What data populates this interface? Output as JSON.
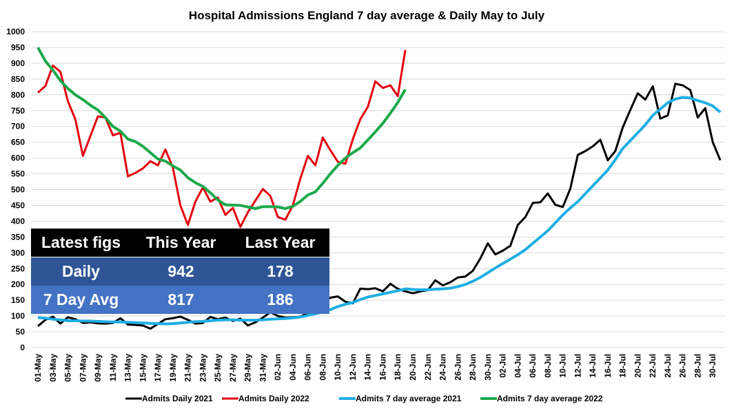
{
  "chart_data": {
    "type": "line",
    "title": "Hospital Admissions England 7 day average & Daily May to July",
    "ylim": [
      0,
      1000
    ],
    "yticks": [
      0,
      50,
      100,
      150,
      200,
      250,
      300,
      350,
      400,
      450,
      500,
      550,
      600,
      650,
      700,
      750,
      800,
      850,
      900,
      950,
      1000
    ],
    "grid": true,
    "legend": "bottom",
    "x_start": "01-May",
    "x_end": "31-Jul",
    "xticks": [
      "01-May",
      "03-May",
      "05-May",
      "07-May",
      "09-May",
      "11-May",
      "13-May",
      "15-May",
      "17-May",
      "19-May",
      "21-May",
      "23-May",
      "25-May",
      "27-May",
      "29-May",
      "31-May",
      "02-Jun",
      "04-Jun",
      "06-Jun",
      "08-Jun",
      "10-Jun",
      "12-Jun",
      "14-Jun",
      "16-Jun",
      "18-Jun",
      "20-Jun",
      "22-Jun",
      "24-Jun",
      "26-Jun",
      "28-Jun",
      "30-Jun",
      "02-Jul",
      "04-Jul",
      "06-Jul",
      "08-Jul",
      "10-Jul",
      "12-Jul",
      "14-Jul",
      "16-Jul",
      "18-Jul",
      "20-Jul",
      "22-Jul",
      "24-Jul",
      "26-Jul",
      "28-Jul",
      "30-Jul"
    ],
    "series": [
      {
        "name": "Admits Daily 2021",
        "color": "#000000",
        "values": [
          68,
          88,
          98,
          76,
          96,
          90,
          78,
          80,
          77,
          76,
          78,
          93,
          73,
          72,
          70,
          60,
          75,
          90,
          93,
          98,
          88,
          76,
          78,
          97,
          90,
          95,
          84,
          92,
          70,
          80,
          95,
          112,
          100,
          95,
          96,
          98,
          110,
          125,
          145,
          158,
          162,
          145,
          140,
          187,
          185,
          188,
          178,
          202,
          186,
          178,
          172,
          178,
          182,
          213,
          197,
          207,
          222,
          225,
          243,
          282,
          330,
          295,
          307,
          322,
          388,
          413,
          458,
          460,
          488,
          452,
          445,
          503,
          610,
          622,
          637,
          658,
          593,
          622,
          697,
          752,
          805,
          785,
          827,
          725,
          735,
          835,
          830,
          815,
          728,
          758,
          650,
          593
        ]
      },
      {
        "name": "Admits Daily 2022",
        "color": "#e3000f",
        "values": [
          807,
          828,
          893,
          873,
          780,
          722,
          607,
          670,
          732,
          728,
          672,
          680,
          542,
          553,
          567,
          590,
          577,
          627,
          570,
          450,
          388,
          462,
          507,
          462,
          475,
          420,
          442,
          382,
          428,
          465,
          502,
          480,
          413,
          405,
          450,
          535,
          607,
          577,
          665,
          625,
          588,
          582,
          660,
          723,
          762,
          843,
          822,
          830,
          796,
          942
        ]
      },
      {
        "name": "Admits 7 day average 2021",
        "color": "#1eaee4",
        "values": [
          95,
          93,
          90,
          88,
          85,
          85,
          84,
          84,
          83,
          82,
          81,
          81,
          80,
          79,
          78,
          77,
          76,
          75,
          76,
          78,
          80,
          82,
          83,
          85,
          87,
          88,
          88,
          87,
          87,
          87,
          88,
          90,
          91,
          92,
          94,
          97,
          102,
          107,
          112,
          120,
          130,
          137,
          143,
          152,
          160,
          165,
          170,
          175,
          180,
          186,
          184,
          183,
          183,
          185,
          186,
          188,
          193,
          200,
          210,
          222,
          237,
          252,
          266,
          280,
          294,
          310,
          330,
          350,
          370,
          395,
          420,
          442,
          462,
          487,
          512,
          537,
          562,
          595,
          630,
          655,
          680,
          705,
          735,
          755,
          775,
          787,
          792,
          790,
          782,
          775,
          765,
          745
        ]
      },
      {
        "name": "Admits 7 day average 2022",
        "color": "#1aa84a",
        "values": [
          950,
          907,
          878,
          845,
          820,
          800,
          785,
          767,
          752,
          728,
          700,
          685,
          660,
          652,
          637,
          617,
          597,
          590,
          575,
          562,
          538,
          522,
          510,
          490,
          467,
          452,
          451,
          450,
          445,
          440,
          446,
          446,
          445,
          440,
          447,
          463,
          483,
          493,
          520,
          550,
          577,
          600,
          617,
          632,
          657,
          683,
          710,
          742,
          776,
          817
        ]
      }
    ]
  },
  "latest_figs": {
    "header": [
      "Latest figs",
      "This Year",
      "Last Year"
    ],
    "rows": [
      {
        "label": "Daily",
        "this_year": "942",
        "last_year": "178"
      },
      {
        "label": "7 Day Avg",
        "this_year": "817",
        "last_year": "186"
      }
    ],
    "colors": {
      "header": "#000000",
      "row1": "#2f5597",
      "row2": "#4472c4"
    }
  }
}
